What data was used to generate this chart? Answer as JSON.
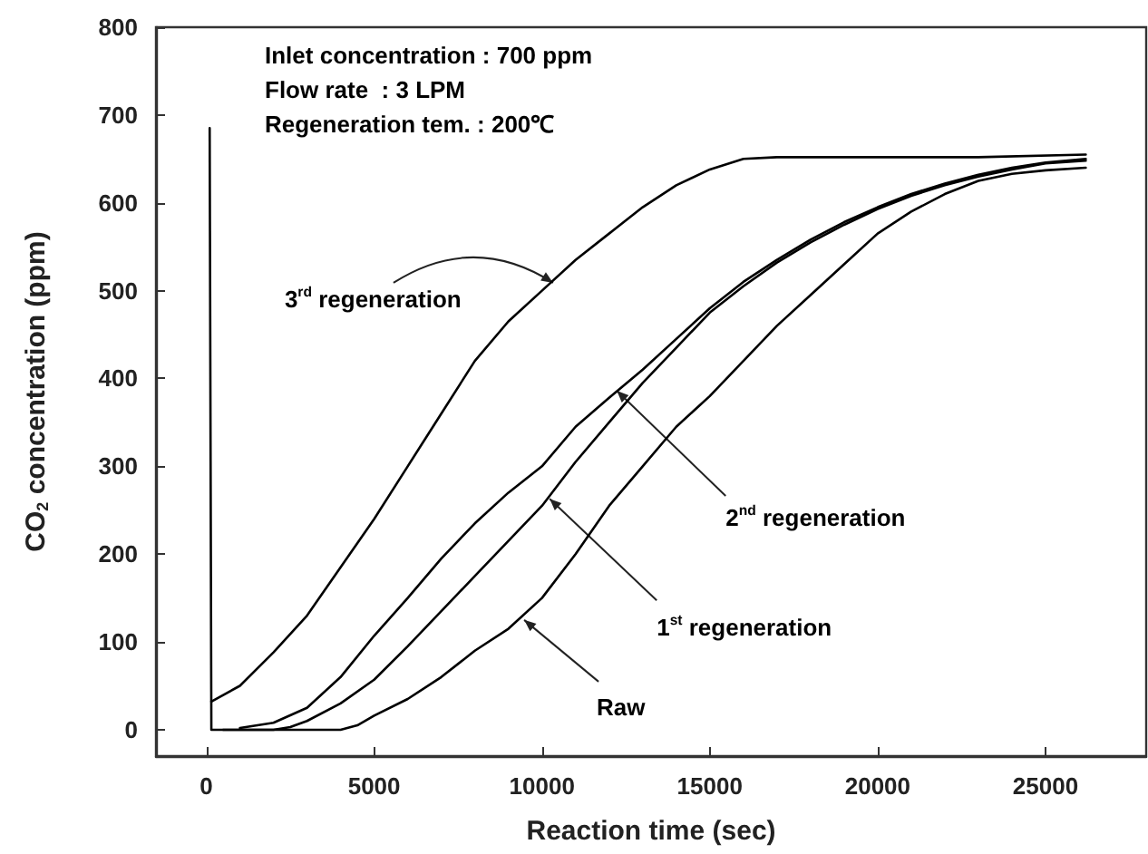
{
  "chart_data": {
    "type": "line",
    "xlabel": "Reaction time (sec)",
    "ylabel": "CO$_{2}$ concentration (ppm)",
    "xlim": [
      -1500,
      28000
    ],
    "xticks": [
      0,
      5000,
      10000,
      15000,
      20000,
      25000
    ],
    "ylim": [
      -30,
      800
    ],
    "yticks": [
      0,
      100,
      200,
      300,
      400,
      500,
      600,
      700,
      800
    ],
    "marker": "none",
    "line_style": "solid",
    "series": [
      {
        "color": "#000000",
        "x": [
          150,
          1000,
          2000,
          3000,
          4000,
          5000,
          6000,
          7000,
          8000,
          9000,
          10000,
          11000,
          12000,
          13000,
          14000,
          15000,
          16000,
          17000,
          20000,
          23000,
          26200
        ],
        "values": [
          32,
          50,
          88,
          130,
          185,
          240,
          300,
          360,
          420,
          465,
          500,
          535,
          565,
          595,
          620,
          638,
          650,
          652,
          652,
          652,
          655
        ]
      },
      {
        "color": "#000000",
        "x": [
          1000,
          2000,
          3000,
          4000,
          5000,
          6000,
          7000,
          8000,
          9000,
          10000,
          11000,
          12000,
          13000,
          14000,
          15000,
          16000,
          17000,
          18000,
          19000,
          20000,
          21000,
          22000,
          23000,
          24000,
          25000,
          26200
        ],
        "values": [
          2,
          8,
          25,
          60,
          107,
          150,
          195,
          235,
          270,
          300,
          345,
          378,
          410,
          445,
          480,
          510,
          535,
          558,
          578,
          595,
          610,
          622,
          632,
          640,
          646,
          650
        ]
      },
      {
        "color": "#000000",
        "x": [
          500,
          2000,
          2500,
          3000,
          4000,
          5000,
          6000,
          7000,
          8000,
          9000,
          10000,
          11000,
          12000,
          13000,
          14000,
          15000,
          16000,
          17000,
          18000,
          19000,
          20000,
          21000,
          22000,
          23000,
          24000,
          25000,
          26200
        ],
        "values": [
          0,
          0,
          3,
          10,
          30,
          57,
          95,
          135,
          175,
          215,
          255,
          305,
          350,
          395,
          435,
          475,
          505,
          532,
          555,
          575,
          593,
          608,
          620,
          630,
          638,
          645,
          648
        ]
      },
      {
        "color": "#000000",
        "x": [
          100,
          150,
          4000,
          4500,
          5000,
          6000,
          7000,
          8000,
          9000,
          10000,
          11000,
          12000,
          13000,
          14000,
          15000,
          16000,
          17000,
          18000,
          19000,
          20000,
          21000,
          22000,
          23000,
          24000,
          25000,
          26200
        ],
        "values": [
          685,
          0,
          0,
          5,
          16,
          35,
          60,
          90,
          115,
          150,
          200,
          255,
          300,
          345,
          380,
          420,
          460,
          495,
          530,
          565,
          590,
          610,
          625,
          633,
          637,
          640
        ]
      }
    ],
    "annotations": [
      "Inlet concentration : 700 ppm",
      "Flow rate  : 3 LPM",
      "Regeneration tem. : 200℃",
      {
        "text": "3$^{rd}$ regeneration",
        "x": 10330,
        "y": 509
      },
      {
        "text": "2$^{nd}$ regeneration",
        "x": 12230,
        "y": 386
      },
      {
        "text": "1$^{st}$ regeneration",
        "x": 10230,
        "y": 263
      },
      {
        "text": "Raw",
        "x": 9470,
        "y": 125
      }
    ]
  }
}
